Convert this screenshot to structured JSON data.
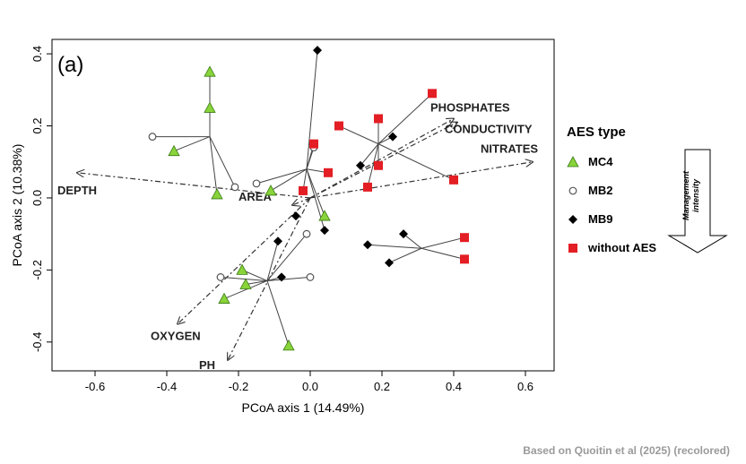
{
  "chart_data": {
    "type": "scatter",
    "panel_label": "(a)",
    "xlabel": "PCoA axis 1 (14.49%)",
    "ylabel": "PCoA axis 2 (10.38%)",
    "xlim": [
      -0.72,
      0.68
    ],
    "ylim": [
      -0.48,
      0.44
    ],
    "xticks": [
      -0.6,
      -0.4,
      -0.2,
      0.0,
      0.2,
      0.4,
      0.6
    ],
    "xtick_labels": [
      "-0.6",
      "-0.4",
      "-0.2",
      "0.0",
      "0.2",
      "0.4",
      "0.6"
    ],
    "yticks": [
      -0.4,
      -0.2,
      0.0,
      0.2,
      0.4
    ],
    "ytick_labels": [
      "-0.4",
      "-0.2",
      "0.0",
      "0.2",
      "0.4"
    ],
    "grid": false,
    "legend": {
      "title": "AES type",
      "position": "right",
      "entries": [
        {
          "label": "MC4",
          "marker": "triangle",
          "color": "#88d43a"
        },
        {
          "label": "MB2",
          "marker": "open-circle",
          "color": "#555555"
        },
        {
          "label": "MB9",
          "marker": "diamond",
          "color": "#000000"
        },
        {
          "label": "without AES",
          "marker": "square",
          "color": "#e31e24"
        }
      ]
    },
    "series": [
      {
        "name": "MC4",
        "marker": "triangle",
        "color": "#88d43a",
        "points": [
          [
            -0.28,
            0.35
          ],
          [
            -0.28,
            0.25
          ],
          [
            -0.38,
            0.13
          ],
          [
            -0.26,
            0.01
          ],
          [
            -0.11,
            0.02
          ],
          [
            0.04,
            -0.05
          ],
          [
            -0.19,
            -0.2
          ],
          [
            -0.18,
            -0.24
          ],
          [
            -0.24,
            -0.28
          ],
          [
            -0.06,
            -0.41
          ]
        ]
      },
      {
        "name": "MB2",
        "marker": "open-circle",
        "color": "#555555",
        "points": [
          [
            -0.44,
            0.17
          ],
          [
            -0.21,
            0.03
          ],
          [
            -0.15,
            0.04
          ],
          [
            0.01,
            0.14
          ],
          [
            -0.01,
            -0.1
          ],
          [
            -0.25,
            -0.22
          ],
          [
            0.0,
            -0.22
          ]
        ]
      },
      {
        "name": "MB9",
        "marker": "diamond",
        "color": "#000000",
        "points": [
          [
            0.02,
            0.41
          ],
          [
            0.23,
            0.17
          ],
          [
            0.14,
            0.09
          ],
          [
            -0.04,
            -0.05
          ],
          [
            0.04,
            -0.09
          ],
          [
            -0.09,
            -0.12
          ],
          [
            -0.08,
            -0.22
          ],
          [
            0.16,
            -0.13
          ],
          [
            0.26,
            -0.1
          ],
          [
            0.22,
            -0.18
          ]
        ]
      },
      {
        "name": "without AES",
        "marker": "square",
        "color": "#e31e24",
        "points": [
          [
            0.34,
            0.29
          ],
          [
            0.19,
            0.22
          ],
          [
            0.08,
            0.2
          ],
          [
            0.01,
            0.15
          ],
          [
            0.19,
            0.09
          ],
          [
            0.05,
            0.07
          ],
          [
            -0.02,
            0.02
          ],
          [
            0.16,
            0.03
          ],
          [
            0.4,
            0.05
          ],
          [
            0.43,
            -0.11
          ],
          [
            0.43,
            -0.17
          ]
        ]
      }
    ],
    "spiders": [
      {
        "centroid": [
          -0.28,
          0.17
        ],
        "members": [
          [
            -0.28,
            0.35
          ],
          [
            -0.28,
            0.25
          ],
          [
            -0.38,
            0.13
          ],
          [
            -0.44,
            0.17
          ],
          [
            -0.21,
            0.03
          ],
          [
            -0.26,
            0.01
          ]
        ]
      },
      {
        "centroid": [
          -0.01,
          0.08
        ],
        "members": [
          [
            0.02,
            0.41
          ],
          [
            -0.11,
            0.02
          ],
          [
            -0.15,
            0.04
          ],
          [
            0.01,
            0.14
          ],
          [
            0.04,
            -0.05
          ],
          [
            0.04,
            -0.09
          ],
          [
            0.01,
            0.15
          ],
          [
            0.05,
            0.07
          ],
          [
            -0.02,
            0.02
          ]
        ]
      },
      {
        "centroid": [
          -0.12,
          -0.23
        ],
        "members": [
          [
            -0.19,
            -0.2
          ],
          [
            -0.18,
            -0.24
          ],
          [
            -0.24,
            -0.28
          ],
          [
            -0.25,
            -0.22
          ],
          [
            0.0,
            -0.22
          ],
          [
            -0.06,
            -0.41
          ],
          [
            -0.01,
            -0.1
          ],
          [
            -0.09,
            -0.12
          ],
          [
            -0.08,
            -0.22
          ]
        ]
      },
      {
        "centroid": [
          0.19,
          0.15
        ],
        "members": [
          [
            0.34,
            0.29
          ],
          [
            0.19,
            0.22
          ],
          [
            0.08,
            0.2
          ],
          [
            0.23,
            0.17
          ],
          [
            0.14,
            0.09
          ],
          [
            0.19,
            0.09
          ],
          [
            0.4,
            0.05
          ],
          [
            0.16,
            0.03
          ]
        ]
      },
      {
        "centroid": [
          0.31,
          -0.14
        ],
        "members": [
          [
            0.16,
            -0.13
          ],
          [
            0.26,
            -0.1
          ],
          [
            0.22,
            -0.18
          ],
          [
            0.43,
            -0.11
          ],
          [
            0.43,
            -0.17
          ]
        ]
      }
    ],
    "vectors": [
      {
        "label": "PHOSPHATES",
        "end": [
          0.4,
          0.22
        ]
      },
      {
        "label": "CONDUCTIVITY",
        "end": [
          0.41,
          0.21
        ]
      },
      {
        "label": "NITRATES",
        "end": [
          0.62,
          0.1
        ]
      },
      {
        "label": "DEPTH",
        "end": [
          -0.65,
          0.07
        ]
      },
      {
        "label": "AREA",
        "end": [
          -0.05,
          -0.02
        ]
      },
      {
        "label": "OXYGEN",
        "end": [
          -0.37,
          -0.35
        ]
      },
      {
        "label": "PH",
        "end": [
          -0.23,
          -0.45
        ]
      }
    ],
    "side_note": "Management intensity"
  },
  "footer": {
    "credit": "Based on Quoitin et al (2025) (recolored)"
  }
}
